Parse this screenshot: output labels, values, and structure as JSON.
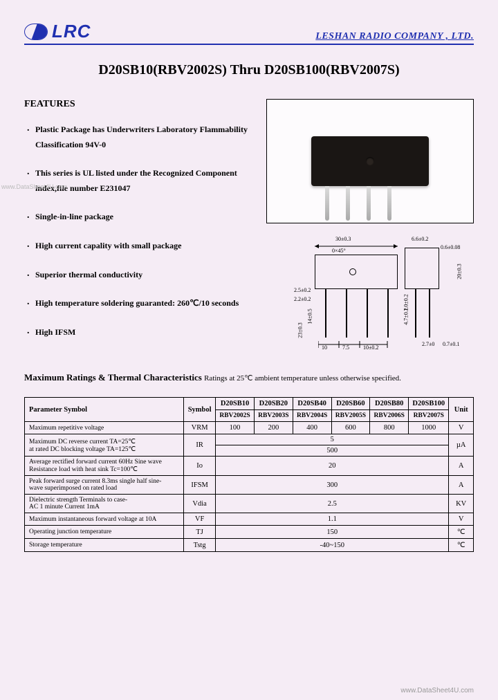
{
  "header": {
    "logo_text": "LRC",
    "company": "LESHAN  RADIO  COMPANY ,   LTD."
  },
  "title": "D20SB10(RBV2002S) Thru D20SB100(RBV2007S)",
  "features": {
    "heading": "FEATURES",
    "items": [
      "Plastic Package has Underwriters  Laboratory Flammability Classification 94V-0",
      "This series is UL listed under the Recognized Component index,file number E231047",
      "Single-in-line package",
      "High  current capality with small package",
      "Superior thermal conductivity",
      "High temperature soldering guaranted: 260℃/10 seconds",
      "High  IFSM"
    ]
  },
  "dimensions": {
    "labels": [
      "30±0.3",
      "6.6±0.2",
      "0.6±0.08",
      "20±0.3",
      "2.5±0.2",
      "2.2±0.2",
      "14±0.5",
      "23±0.3",
      "1.0±0.2",
      "4.7±0.2",
      "2.7±0",
      "0.7±0.1",
      "10",
      "7.5",
      "10±0.2",
      "0×45°"
    ]
  },
  "ratings": {
    "heading": "Maximum Ratings & Thermal Characteristics",
    "sub": "Ratings  at  25℃ ambient temperature unless otherwise specified.",
    "head_param": "Parameter  Symbol",
    "head_symbol": "Symbol",
    "head_unit": "Unit",
    "models_top": [
      "D20SB10",
      "D20SB20",
      "D20SB40",
      "D20SB60",
      "D20SB80",
      "D20SB100"
    ],
    "models_bot": [
      "RBV2002S",
      "RBV2003S",
      "RBV2004S",
      "RBV2005S",
      "RBV2006S",
      "RBV2007S"
    ],
    "rows": [
      {
        "param": "Maximum  repetitive  voltage",
        "symbol": "VRM",
        "vals": [
          "100",
          "200",
          "400",
          "600",
          "800",
          "1000"
        ],
        "unit": "V",
        "span": false
      },
      {
        "param": "Maximum DC reverse current           TA=25℃\nat rated DC blocking voltage           TA=125℃",
        "symbol": "IR",
        "vals": [
          "5",
          "500"
        ],
        "unit": "µA",
        "double": true
      },
      {
        "param": "Average rectified forward current  60Hz Sine wave\nResistance load  with heat sink Tc=100℃",
        "symbol": "Io",
        "vals": [
          "20"
        ],
        "unit": "A",
        "span": true
      },
      {
        "param": "Peak  forward surge current 8.3ms single half sine-\nwave superimposed on rated load",
        "symbol": "IFSM",
        "vals": [
          "300"
        ],
        "unit": "A",
        "span": true
      },
      {
        "param": "Dielectric strength Terminals to case-\nAC 1 minute  Current 1mA",
        "symbol": "Vdia",
        "vals": [
          "2.5"
        ],
        "unit": "KV",
        "span": true
      },
      {
        "param": "Maximum instantaneous forward voltage at 10A",
        "symbol": "VF",
        "vals": [
          "1.1"
        ],
        "unit": "V",
        "span": true
      },
      {
        "param": "Operating junction temperature",
        "symbol": "TJ",
        "vals": [
          "150"
        ],
        "unit": "℃",
        "span": true
      },
      {
        "param": "Storage temperature",
        "symbol": "Tstg",
        "vals": [
          "-40~150"
        ],
        "unit": "℃",
        "span": true
      }
    ]
  },
  "footer": "www.DataSheet4U.com",
  "watermark": "www.DataSheet4U.com"
}
